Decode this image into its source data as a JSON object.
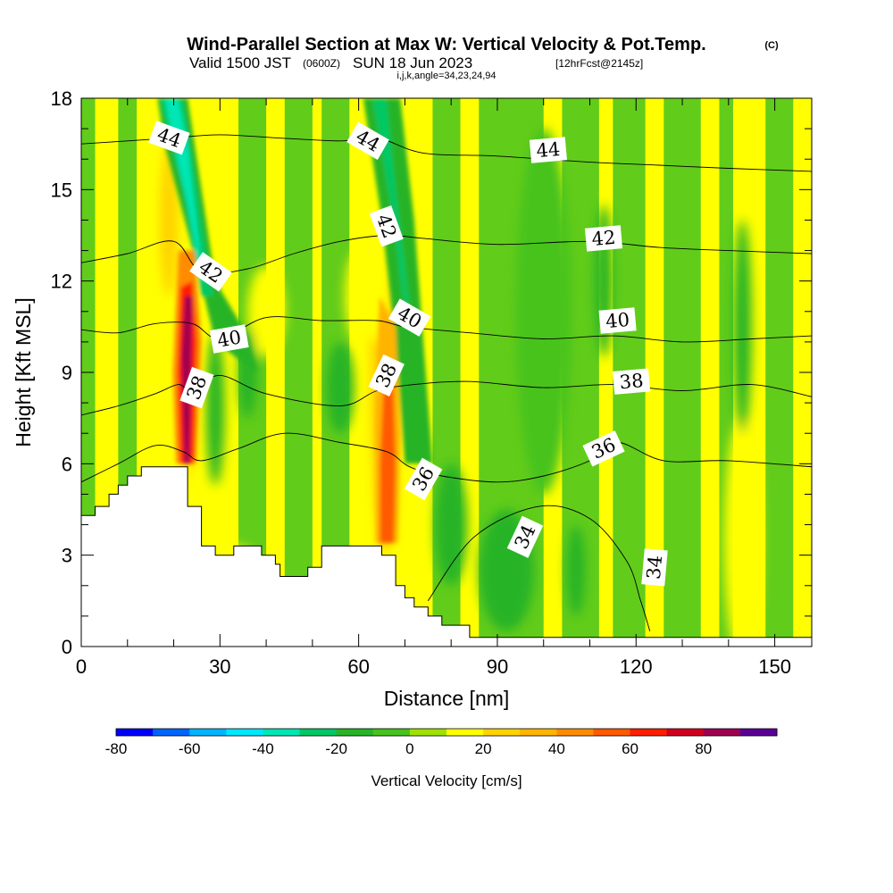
{
  "header": {
    "title": "Wind-Parallel Section at Max W: Vertical Velocity & Pot.Temp.",
    "copyright": "(C)",
    "valid_prefix": "Valid 1500 JST",
    "utc": "(0600Z)",
    "valid_date": "SUN 18 Jun 2023",
    "forecast": "[12hrFcst@2145z]",
    "indices": "i,j,k,angle=34,23,24,94"
  },
  "chart_data": {
    "type": "heatmap",
    "xlabel": "Distance [nm]",
    "ylabel": "Height [Kft MSL]",
    "xlim": [
      0,
      158
    ],
    "ylim": [
      0,
      18
    ],
    "x_ticks": [
      0,
      30,
      60,
      90,
      120,
      150
    ],
    "y_ticks": [
      0,
      3,
      6,
      9,
      12,
      15,
      18
    ],
    "colorbar": {
      "label": "Vertical Velocity [cm/s]",
      "tick_values": [
        -80,
        -60,
        -40,
        -20,
        0,
        20,
        40,
        60,
        80
      ],
      "levels": [
        -80,
        -70,
        -60,
        -50,
        -40,
        -30,
        -20,
        -10,
        0,
        10,
        20,
        30,
        40,
        50,
        60,
        70,
        80,
        90
      ],
      "colors": [
        "#0000ff",
        "#0064ff",
        "#00b4ff",
        "#00e6ff",
        "#00e6b4",
        "#00c864",
        "#28b428",
        "#46c31e",
        "#a0e100",
        "#ffff00",
        "#ffd200",
        "#ffb400",
        "#ff8c00",
        "#ff5a00",
        "#ff1e00",
        "#d2001e",
        "#a00050",
        "#5a0096"
      ]
    },
    "terrain_profile": [
      {
        "x": 0,
        "y": 4.3
      },
      {
        "x": 3,
        "y": 4.3
      },
      {
        "x": 3,
        "y": 4.6
      },
      {
        "x": 6,
        "y": 4.6
      },
      {
        "x": 6,
        "y": 5.0
      },
      {
        "x": 8,
        "y": 5.0
      },
      {
        "x": 8,
        "y": 5.3
      },
      {
        "x": 10,
        "y": 5.3
      },
      {
        "x": 10,
        "y": 5.6
      },
      {
        "x": 13,
        "y": 5.6
      },
      {
        "x": 13,
        "y": 5.9
      },
      {
        "x": 23,
        "y": 5.9
      },
      {
        "x": 23,
        "y": 4.6
      },
      {
        "x": 26,
        "y": 4.6
      },
      {
        "x": 26,
        "y": 3.3
      },
      {
        "x": 29,
        "y": 3.3
      },
      {
        "x": 29,
        "y": 3.0
      },
      {
        "x": 33,
        "y": 3.0
      },
      {
        "x": 33,
        "y": 3.3
      },
      {
        "x": 39,
        "y": 3.3
      },
      {
        "x": 39,
        "y": 3.0
      },
      {
        "x": 42,
        "y": 3.0
      },
      {
        "x": 42,
        "y": 2.7
      },
      {
        "x": 43,
        "y": 2.7
      },
      {
        "x": 43,
        "y": 2.3
      },
      {
        "x": 49,
        "y": 2.3
      },
      {
        "x": 49,
        "y": 2.6
      },
      {
        "x": 52,
        "y": 2.6
      },
      {
        "x": 52,
        "y": 3.3
      },
      {
        "x": 65,
        "y": 3.3
      },
      {
        "x": 65,
        "y": 3.0
      },
      {
        "x": 68,
        "y": 3.0
      },
      {
        "x": 68,
        "y": 2.0
      },
      {
        "x": 70,
        "y": 2.0
      },
      {
        "x": 70,
        "y": 1.6
      },
      {
        "x": 72,
        "y": 1.6
      },
      {
        "x": 72,
        "y": 1.3
      },
      {
        "x": 75,
        "y": 1.3
      },
      {
        "x": 75,
        "y": 1.0
      },
      {
        "x": 78,
        "y": 1.0
      },
      {
        "x": 78,
        "y": 0.7
      },
      {
        "x": 84,
        "y": 0.7
      },
      {
        "x": 84,
        "y": 0.3
      },
      {
        "x": 158,
        "y": 0.3
      },
      {
        "x": 158,
        "y": 0
      },
      {
        "x": 0,
        "y": 0
      }
    ],
    "theta_contours": [
      {
        "level": 34,
        "points": [
          [
            75,
            1.5
          ],
          [
            85,
            3.6
          ],
          [
            99,
            4.6
          ],
          [
            110,
            4.2
          ],
          [
            118,
            2.8
          ],
          [
            121,
            1.5
          ],
          [
            123,
            0.5
          ]
        ]
      },
      {
        "level": 36,
        "points": [
          [
            0,
            5.4
          ],
          [
            8,
            6.0
          ],
          [
            16,
            6.6
          ],
          [
            22,
            6.4
          ],
          [
            26,
            6.1
          ],
          [
            34,
            6.5
          ],
          [
            44,
            7.0
          ],
          [
            56,
            6.7
          ],
          [
            66,
            6.4
          ],
          [
            71,
            5.9
          ],
          [
            78,
            5.6
          ],
          [
            90,
            5.4
          ],
          [
            100,
            5.6
          ],
          [
            110,
            6.1
          ],
          [
            116,
            6.7
          ],
          [
            126,
            6.1
          ],
          [
            140,
            6.1
          ],
          [
            158,
            5.9
          ]
        ]
      },
      {
        "level": 38,
        "points": [
          [
            0,
            7.6
          ],
          [
            8,
            7.9
          ],
          [
            16,
            8.3
          ],
          [
            21,
            8.6
          ],
          [
            24,
            8.4
          ],
          [
            30,
            8.9
          ],
          [
            40,
            8.3
          ],
          [
            56,
            7.9
          ],
          [
            64,
            8.4
          ],
          [
            72,
            8.6
          ],
          [
            84,
            8.7
          ],
          [
            100,
            8.5
          ],
          [
            115,
            8.6
          ],
          [
            130,
            8.4
          ],
          [
            145,
            8.6
          ],
          [
            158,
            8.2
          ]
        ]
      },
      {
        "level": 40,
        "points": [
          [
            0,
            10.4
          ],
          [
            8,
            10.3
          ],
          [
            16,
            10.6
          ],
          [
            24,
            10.6
          ],
          [
            30,
            10.1
          ],
          [
            40,
            10.8
          ],
          [
            52,
            10.7
          ],
          [
            64,
            10.7
          ],
          [
            70,
            10.5
          ],
          [
            84,
            10.3
          ],
          [
            100,
            10.1
          ],
          [
            115,
            10.2
          ],
          [
            130,
            10.0
          ],
          [
            145,
            10.1
          ],
          [
            158,
            10.2
          ]
        ]
      },
      {
        "level": 42,
        "points": [
          [
            0,
            12.6
          ],
          [
            10,
            12.9
          ],
          [
            20,
            13.3
          ],
          [
            26,
            12.3
          ],
          [
            36,
            12.4
          ],
          [
            46,
            12.9
          ],
          [
            56,
            13.3
          ],
          [
            66,
            13.5
          ],
          [
            74,
            13.4
          ],
          [
            90,
            13.2
          ],
          [
            110,
            13.3
          ],
          [
            125,
            13.1
          ],
          [
            140,
            13.0
          ],
          [
            158,
            12.9
          ]
        ]
      },
      {
        "level": 44,
        "points": [
          [
            0,
            16.5
          ],
          [
            10,
            16.6
          ],
          [
            20,
            16.7
          ],
          [
            30,
            16.8
          ],
          [
            42,
            16.7
          ],
          [
            56,
            16.6
          ],
          [
            64,
            16.7
          ],
          [
            74,
            16.2
          ],
          [
            90,
            16.1
          ],
          [
            110,
            15.9
          ],
          [
            125,
            15.8
          ],
          [
            140,
            15.7
          ],
          [
            158,
            15.6
          ]
        ]
      }
    ],
    "contour_labels": [
      {
        "text": "44",
        "x": 19,
        "y": 16.7,
        "angle": 20
      },
      {
        "text": "44",
        "x": 62,
        "y": 16.6,
        "angle": 30
      },
      {
        "text": "44",
        "x": 101,
        "y": 16.3,
        "angle": -5
      },
      {
        "text": "42",
        "x": 66,
        "y": 13.8,
        "angle": 70
      },
      {
        "text": "42",
        "x": 113,
        "y": 13.4,
        "angle": -5
      },
      {
        "text": "42",
        "x": 28,
        "y": 12.3,
        "angle": 35
      },
      {
        "text": "40",
        "x": 71,
        "y": 10.8,
        "angle": 30
      },
      {
        "text": "40",
        "x": 116,
        "y": 10.7,
        "angle": -5
      },
      {
        "text": "40",
        "x": 32,
        "y": 10.1,
        "angle": -10
      },
      {
        "text": "38",
        "x": 66,
        "y": 8.9,
        "angle": -65
      },
      {
        "text": "38",
        "x": 119,
        "y": 8.7,
        "angle": -5
      },
      {
        "text": "38",
        "x": 25,
        "y": 8.5,
        "angle": -70
      },
      {
        "text": "36",
        "x": 113,
        "y": 6.5,
        "angle": -25
      },
      {
        "text": "36",
        "x": 74,
        "y": 5.5,
        "angle": -60
      },
      {
        "text": "34",
        "x": 96,
        "y": 3.6,
        "angle": -65
      },
      {
        "text": "34",
        "x": 124,
        "y": 2.6,
        "angle": -85
      }
    ],
    "w_features": [
      {
        "x": 23,
        "y": 8.5,
        "w": 1.3,
        "h": 3.0,
        "value": 70
      },
      {
        "x": 23,
        "y": 7.6,
        "w": 1.0,
        "h": 1.8,
        "value": 85
      },
      {
        "x": 22.5,
        "y": 9.8,
        "w": 2.0,
        "h": 4.5,
        "value": 50
      },
      {
        "x": 22,
        "y": 11.5,
        "w": 2.5,
        "h": 6.5,
        "value": 15
      },
      {
        "x": 66,
        "y": 6.2,
        "w": 2.0,
        "h": 3.0,
        "value": 50
      },
      {
        "x": 65.5,
        "y": 9.5,
        "w": 3.0,
        "h": 6.5,
        "value": 25
      },
      {
        "x": 64,
        "y": 13.0,
        "w": 3.0,
        "h": 3.0,
        "value": 10
      },
      {
        "x": 143,
        "y": 3.4,
        "w": 2.0,
        "h": 3.0,
        "value": 30
      },
      {
        "x": 143,
        "y": 3.5,
        "w": 4.0,
        "h": 4.0,
        "value": 15
      },
      {
        "x": 19,
        "y": 14.0,
        "w": 2.0,
        "h": 2.5,
        "value": 25
      },
      {
        "x": 40,
        "y": 11.0,
        "w": 4.0,
        "h": 1.5,
        "value": 15
      },
      {
        "x": 60,
        "y": 11.5,
        "w": 3.0,
        "h": 1.5,
        "value": 15
      },
      {
        "x": 33,
        "y": 2.7,
        "w": 5.0,
        "h": 0.6,
        "value": 15
      },
      {
        "x": 28,
        "y": 16.5,
        "w": 4.0,
        "h": 2.0,
        "value": 12
      },
      {
        "x": 29,
        "y": 7.8,
        "w": 2.0,
        "h": 2.5,
        "value": -15
      },
      {
        "x": 36,
        "y": 9.0,
        "w": 2.0,
        "h": 1.5,
        "value": -20
      },
      {
        "x": 56,
        "y": 8.5,
        "w": 3.0,
        "h": 1.5,
        "value": -15
      },
      {
        "x": 80,
        "y": 4.0,
        "w": 3.5,
        "h": 2.0,
        "value": -20
      },
      {
        "x": 92,
        "y": 2.5,
        "w": 6.0,
        "h": 2.0,
        "value": -12
      },
      {
        "x": 107,
        "y": 2.5,
        "w": 2.0,
        "h": 1.5,
        "value": -20
      },
      {
        "x": 113,
        "y": 12.0,
        "w": 2.0,
        "h": 2.5,
        "value": -12
      },
      {
        "x": 143,
        "y": 10.5,
        "w": 2.0,
        "h": 3.5,
        "value": -15
      },
      {
        "x": 100,
        "y": 11.0,
        "w": 6.0,
        "h": 6.0,
        "value": -8
      }
    ],
    "w_updraft_cores": [
      {
        "value": 80,
        "points": [
          [
            22.3,
            6.0
          ],
          [
            23.4,
            6.0
          ],
          [
            24,
            11.5
          ],
          [
            22.4,
            11.5
          ],
          [
            21.7,
            9.5
          ]
        ]
      },
      {
        "value": 65,
        "points": [
          [
            21.4,
            6.0
          ],
          [
            24.3,
            6.0
          ],
          [
            25,
            10.0
          ],
          [
            24,
            12.0
          ],
          [
            21.5,
            11.8
          ],
          [
            20.8,
            9.0
          ]
        ]
      },
      {
        "value": 40,
        "points": [
          [
            20.5,
            6.0
          ],
          [
            24.8,
            6.0
          ],
          [
            26,
            10.0
          ],
          [
            24.5,
            13.0
          ],
          [
            21,
            13.0
          ],
          [
            19.8,
            9.0
          ]
        ]
      },
      {
        "value": 55,
        "points": [
          [
            64.6,
            3.4
          ],
          [
            67.6,
            3.4
          ],
          [
            68,
            6.0
          ],
          [
            67.4,
            9.0
          ],
          [
            65.5,
            9.0
          ],
          [
            64.6,
            6.0
          ]
        ]
      },
      {
        "value": 35,
        "points": [
          [
            63.7,
            3.4
          ],
          [
            68.5,
            3.4
          ],
          [
            69,
            7.0
          ],
          [
            68,
            10.5
          ],
          [
            64.5,
            11.5
          ],
          [
            63.5,
            7.5
          ]
        ]
      }
    ],
    "w_downdraft_bands": [
      {
        "value": -40,
        "points": [
          [
            18,
            18
          ],
          [
            21,
            18
          ],
          [
            23,
            16.5
          ],
          [
            26,
            12.5
          ],
          [
            28,
            12.0
          ],
          [
            26,
            12.0
          ],
          [
            23,
            14.5
          ],
          [
            20,
            16.5
          ]
        ]
      },
      {
        "value": -30,
        "points": [
          [
            17,
            18
          ],
          [
            22,
            18
          ],
          [
            26,
            14.0
          ],
          [
            28.5,
            11.5
          ],
          [
            26,
            11.5
          ],
          [
            22,
            15.0
          ],
          [
            18.5,
            17.0
          ]
        ]
      },
      {
        "value": -20,
        "points": [
          [
            16.5,
            18
          ],
          [
            23,
            18
          ],
          [
            29,
            12.0
          ],
          [
            36,
            10.2
          ],
          [
            38,
            9.0
          ],
          [
            29,
            10.0
          ],
          [
            25,
            12.5
          ],
          [
            18,
            16.5
          ]
        ]
      },
      {
        "value": -30,
        "points": [
          [
            63,
            18
          ],
          [
            66,
            18
          ],
          [
            68,
            15.0
          ],
          [
            70,
            12.5
          ],
          [
            71,
            11.0
          ],
          [
            69.5,
            11.5
          ],
          [
            67.5,
            14.0
          ]
        ]
      },
      {
        "value": -20,
        "points": [
          [
            62,
            18
          ],
          [
            67,
            18
          ],
          [
            70,
            14.0
          ],
          [
            72,
            10.5
          ],
          [
            73,
            7.0
          ],
          [
            70.5,
            7.0
          ],
          [
            69,
            10.0
          ],
          [
            66.5,
            14.0
          ]
        ]
      },
      {
        "value": -12,
        "points": [
          [
            61,
            18
          ],
          [
            69,
            18
          ],
          [
            72,
            14.0
          ],
          [
            74,
            10.0
          ],
          [
            76,
            6.0
          ],
          [
            70,
            6.0
          ],
          [
            68,
            10.0
          ],
          [
            65,
            14.0
          ]
        ]
      }
    ]
  }
}
